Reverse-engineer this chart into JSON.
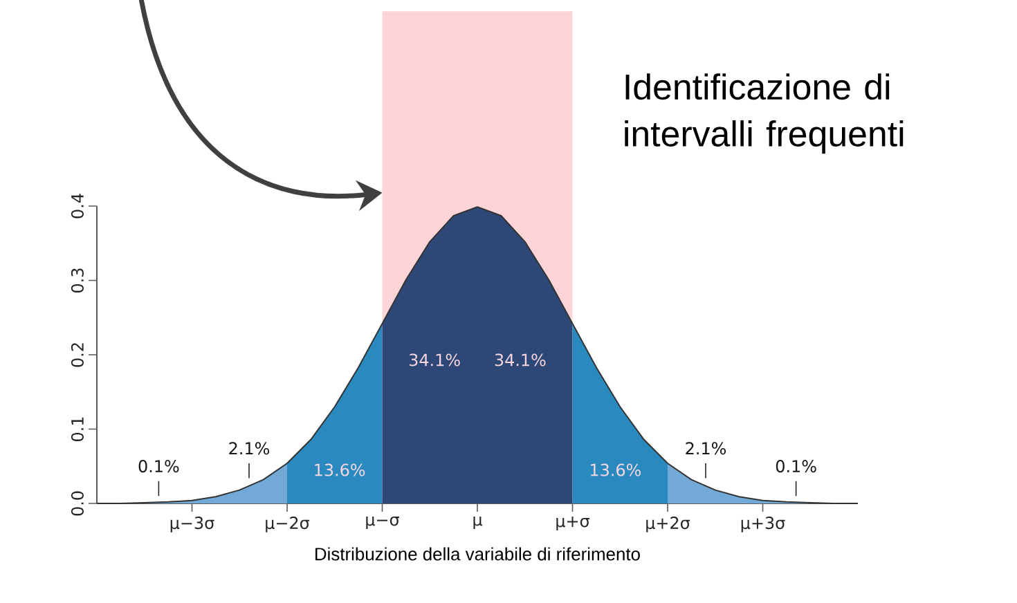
{
  "chart_data": {
    "type": "area",
    "xlabel": "Distribuzione della variabile di riferimento",
    "categories": [
      null,
      null,
      null,
      null,
      "μ−3σ",
      null,
      null,
      null,
      "μ−2σ",
      null,
      null,
      null,
      "μ−σ",
      null,
      null,
      null,
      "μ",
      null,
      null,
      null,
      "μ+σ",
      null,
      null,
      null,
      "μ+2σ",
      null,
      null,
      null,
      "μ+3σ",
      null,
      null,
      null,
      null
    ],
    "ylim": [
      0,
      0.4
    ],
    "yticks": [
      {
        "value": 0,
        "label": "0.0"
      },
      0.1,
      0.2,
      0.3,
      0.4
    ],
    "grid": false,
    "bands": [
      {
        "axis": "x",
        "from": "μ−σ",
        "to": "μ+σ",
        "color": "#fdd5d8"
      }
    ],
    "series": [
      {
        "color": "#72a9d6",
        "values": [
          0.0,
          0.0,
          0.001,
          0.002,
          0.004,
          0.009,
          0.018,
          0.032,
          0.054,
          null,
          null,
          null,
          null,
          null,
          null,
          null,
          null,
          null,
          null,
          null,
          null,
          null,
          null,
          null,
          null,
          null,
          null,
          null,
          null,
          null,
          null,
          null,
          null
        ]
      },
      {
        "color": "#2a8ac0",
        "values": [
          null,
          null,
          null,
          null,
          null,
          null,
          null,
          null,
          0.054,
          0.086,
          0.13,
          0.183,
          0.242,
          null,
          null,
          null,
          null,
          null,
          null,
          null,
          null,
          null,
          null,
          null,
          null,
          null,
          null,
          null,
          null,
          null,
          null,
          null,
          null
        ]
      },
      {
        "color": "#2d4876",
        "values": [
          null,
          null,
          null,
          null,
          null,
          null,
          null,
          null,
          null,
          null,
          null,
          null,
          0.242,
          0.301,
          0.352,
          0.387,
          0.399,
          null,
          null,
          null,
          null,
          null,
          null,
          null,
          null,
          null,
          null,
          null,
          null,
          null,
          null,
          null,
          null
        ]
      },
      {
        "color": "#2d4876",
        "values": [
          null,
          null,
          null,
          null,
          null,
          null,
          null,
          null,
          null,
          null,
          null,
          null,
          null,
          null,
          null,
          null,
          0.399,
          0.387,
          0.352,
          0.301,
          0.242,
          null,
          null,
          null,
          null,
          null,
          null,
          null,
          null,
          null,
          null,
          null,
          null
        ]
      },
      {
        "color": "#2a8ac0",
        "values": [
          null,
          null,
          null,
          null,
          null,
          null,
          null,
          null,
          null,
          null,
          null,
          null,
          null,
          null,
          null,
          null,
          null,
          null,
          null,
          null,
          0.242,
          0.183,
          0.13,
          0.086,
          0.054,
          null,
          null,
          null,
          null,
          null,
          null,
          null,
          null
        ]
      },
      {
        "color": "#72a9d6",
        "values": [
          null,
          null,
          null,
          null,
          null,
          null,
          null,
          null,
          null,
          null,
          null,
          null,
          null,
          null,
          null,
          null,
          null,
          null,
          null,
          null,
          null,
          null,
          null,
          null,
          0.054,
          0.032,
          0.018,
          0.009,
          0.004,
          0.002,
          0.001,
          0.0,
          0.0
        ]
      }
    ],
    "annotations": [
      "0.1%",
      "2.1%",
      "13.6%",
      "34.1%",
      "34.1%",
      "13.6%",
      "2.1%",
      "0.1%",
      "Identificazione di intervalli frequenti"
    ]
  }
}
